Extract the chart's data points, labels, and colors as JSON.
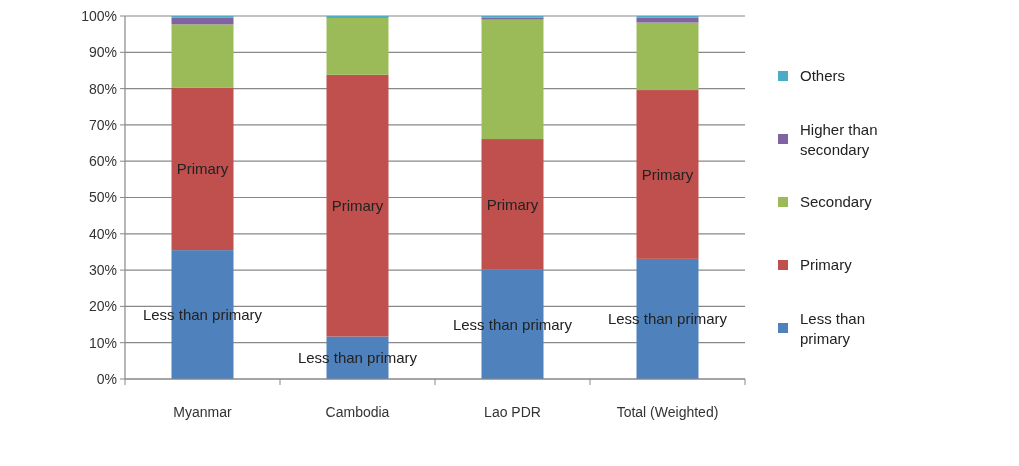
{
  "chart_data": {
    "type": "bar",
    "stacked": true,
    "categories": [
      "Myanmar",
      "Cambodia",
      "Lao PDR",
      "Total (Weighted)"
    ],
    "series": [
      {
        "name": "Less than primary",
        "color": "#4f81bd",
        "values": [
          35.5,
          11.7,
          30.1,
          33.1
        ],
        "value_labels": [
          "Less than primary",
          "Less than primary",
          "Less than primary",
          "Less than primary"
        ]
      },
      {
        "name": "Primary",
        "color": "#c0504d",
        "values": [
          44.7,
          72.1,
          36.0,
          46.5
        ],
        "value_labels": [
          "Primary",
          "Primary",
          "Primary",
          "Primary"
        ]
      },
      {
        "name": "Secondary",
        "color": "#9bbb59",
        "values": [
          17.5,
          15.7,
          32.9,
          18.6
        ]
      },
      {
        "name": "Higher than secondary",
        "color": "#8064a2",
        "values": [
          1.9,
          0.2,
          0.6,
          1.4
        ]
      },
      {
        "name": "Others",
        "color": "#4bacc6",
        "values": [
          0.4,
          0.3,
          0.4,
          0.4
        ]
      }
    ],
    "ylim": [
      0,
      100
    ],
    "yticks": [
      {
        "value": 0,
        "label": "0%"
      },
      {
        "value": 10,
        "label": "10%"
      },
      {
        "value": 20,
        "label": "20%"
      },
      {
        "value": 30,
        "label": "30%"
      },
      {
        "value": 40,
        "label": "40%"
      },
      {
        "value": 50,
        "label": "50%"
      },
      {
        "value": 60,
        "label": "60%"
      },
      {
        "value": 70,
        "label": "70%"
      },
      {
        "value": 80,
        "label": "80%"
      },
      {
        "value": 90,
        "label": "90%"
      },
      {
        "value": 100,
        "label": "100%"
      }
    ],
    "grid": "y",
    "legend": "right"
  }
}
